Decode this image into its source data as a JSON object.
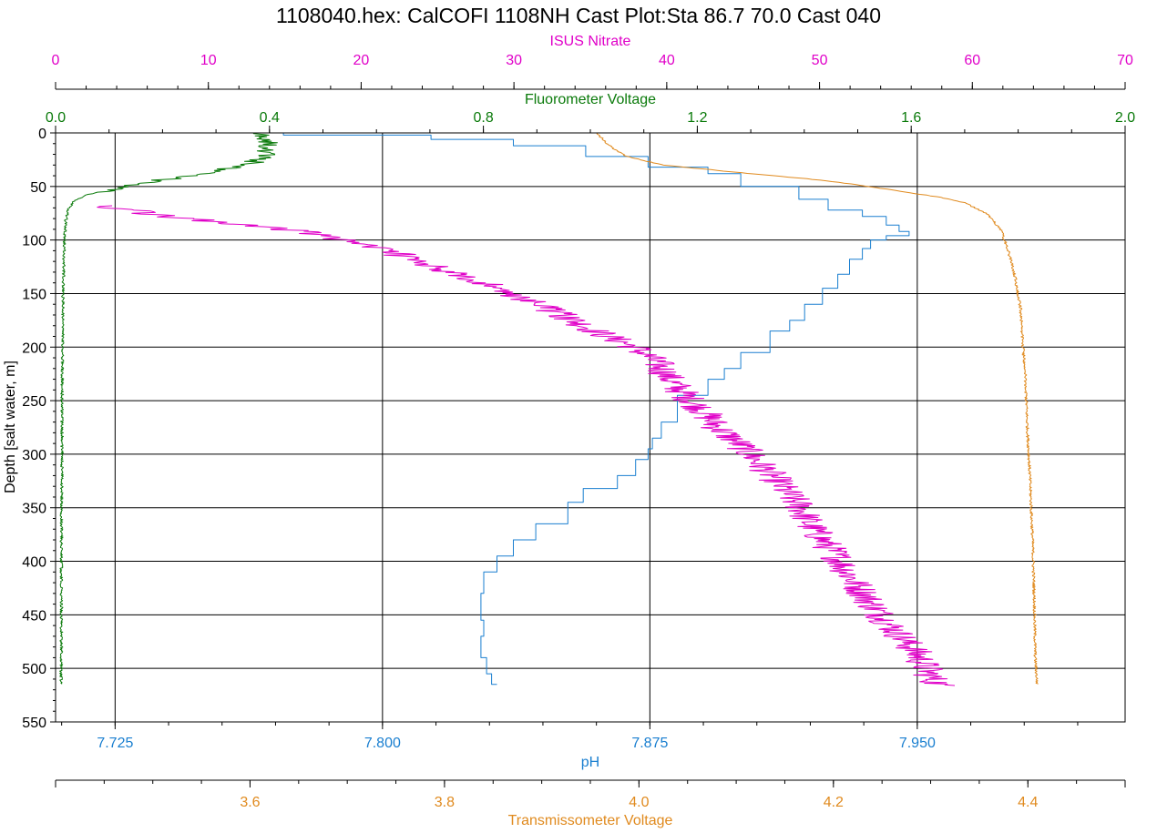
{
  "chart_data": {
    "type": "line",
    "title": "1108040.hex: CalCOFI 1108NH Cast Plot:Sta 86.7 70.0  Cast 040",
    "grid": true,
    "y_axis": {
      "label": "Depth [salt water, m]",
      "range": [
        0,
        550
      ],
      "inverted": true,
      "ticks": [
        0,
        50,
        100,
        150,
        200,
        250,
        300,
        350,
        400,
        450,
        500,
        550
      ],
      "tick_labels": [
        "0",
        "50",
        "100",
        "150",
        "200",
        "250",
        "300",
        "350",
        "400",
        "450",
        "500",
        "550"
      ]
    },
    "x_axes": [
      {
        "key": "nitrate",
        "position": "top-outer",
        "label": "ISUS Nitrate",
        "color": "#e000c8",
        "range": [
          0,
          70
        ],
        "ticks": [
          0,
          10,
          20,
          30,
          40,
          50,
          60,
          70
        ],
        "tick_labels": [
          "0",
          "10",
          "20",
          "30",
          "40",
          "50",
          "60",
          "70"
        ]
      },
      {
        "key": "fluor",
        "position": "top-inner",
        "label": "Fluorometer Voltage",
        "color": "#0a7a0a",
        "range": [
          0,
          2
        ],
        "ticks": [
          0,
          0.4,
          0.8,
          1.2,
          1.6,
          2.0
        ],
        "tick_labels": [
          "0.0",
          "0.4",
          "0.8",
          "1.2",
          "1.6",
          "2.0"
        ]
      },
      {
        "key": "ph",
        "position": "bottom-inner",
        "label": "pH",
        "color": "#1a7fd0",
        "range": [
          7.7083,
          8.0083
        ],
        "ticks": [
          7.725,
          7.8,
          7.875,
          7.95
        ],
        "tick_labels": [
          "7.725",
          "7.800",
          "7.875",
          "7.950"
        ]
      },
      {
        "key": "trans",
        "position": "bottom-outer",
        "label": "Transmissometer Voltage",
        "color": "#e08a1e",
        "range": [
          3.4,
          4.5
        ],
        "ticks": [
          3.6,
          3.8,
          4.0,
          4.2,
          4.4
        ],
        "tick_labels": [
          "3.6",
          "3.8",
          "4.0",
          "4.2",
          "4.4"
        ]
      }
    ],
    "series": [
      {
        "name": "pH",
        "axis": "ph",
        "color": "#1a7fd0",
        "points": [
          [
            7.7257,
            0
          ],
          [
            7.7722,
            0
          ],
          [
            7.8136,
            2
          ],
          [
            7.8367,
            6
          ],
          [
            7.857,
            12
          ],
          [
            7.8745,
            22
          ],
          [
            7.8913,
            32
          ],
          [
            7.9005,
            38
          ],
          [
            7.9168,
            50
          ],
          [
            7.925,
            62
          ],
          [
            7.9346,
            72
          ],
          [
            7.9413,
            78
          ],
          [
            7.9449,
            86
          ],
          [
            7.9477,
            92
          ],
          [
            7.9413,
            96
          ],
          [
            7.9369,
            100
          ],
          [
            7.9346,
            108
          ],
          [
            7.931,
            118
          ],
          [
            7.9277,
            132
          ],
          [
            7.9234,
            145
          ],
          [
            7.9184,
            160
          ],
          [
            7.9142,
            175
          ],
          [
            7.9087,
            185
          ],
          [
            7.9005,
            205
          ],
          [
            7.8959,
            220
          ],
          [
            7.8913,
            230
          ],
          [
            7.8827,
            245
          ],
          [
            7.8782,
            270
          ],
          [
            7.8757,
            285
          ],
          [
            7.8745,
            295
          ],
          [
            7.871,
            305
          ],
          [
            7.8659,
            320
          ],
          [
            7.8563,
            332
          ],
          [
            7.852,
            345
          ],
          [
            7.843,
            365
          ],
          [
            7.8367,
            380
          ],
          [
            7.8321,
            395
          ],
          [
            7.8284,
            410
          ],
          [
            7.8276,
            430
          ],
          [
            7.8284,
            455
          ],
          [
            7.8276,
            470
          ],
          [
            7.8292,
            490
          ],
          [
            7.8306,
            505
          ],
          [
            7.8321,
            515
          ]
        ]
      },
      {
        "name": "Transmissometer Voltage",
        "axis": "trans",
        "color": "#e08a1e",
        "points": [
          [
            3.9572,
            0
          ],
          [
            3.9646,
            8
          ],
          [
            3.976,
            16
          ],
          [
            3.9873,
            22
          ],
          [
            4.0249,
            30
          ],
          [
            4.1138,
            38
          ],
          [
            4.1757,
            43
          ],
          [
            4.2207,
            48
          ],
          [
            4.2582,
            53
          ],
          [
            4.3086,
            60
          ],
          [
            4.3345,
            65
          ],
          [
            4.3589,
            76
          ],
          [
            4.373,
            92
          ],
          [
            4.3804,
            112
          ],
          [
            4.387,
            135
          ],
          [
            4.3926,
            165
          ],
          [
            4.3945,
            195
          ],
          [
            4.3973,
            225
          ],
          [
            4.3992,
            270
          ],
          [
            4.402,
            320
          ],
          [
            4.4048,
            380
          ],
          [
            4.4067,
            440
          ],
          [
            4.4076,
            490
          ],
          [
            4.4095,
            515
          ]
        ]
      },
      {
        "name": "Fluorometer Voltage",
        "axis": "fluor",
        "color": "#0a7a0a",
        "points": [
          [
            0.38,
            0
          ],
          [
            0.392,
            5
          ],
          [
            0.398,
            12
          ],
          [
            0.395,
            20
          ],
          [
            0.362,
            30
          ],
          [
            0.248,
            40
          ],
          [
            0.126,
            50
          ],
          [
            0.056,
            58
          ],
          [
            0.034,
            64
          ],
          [
            0.024,
            72
          ],
          [
            0.019,
            82
          ],
          [
            0.017,
            95
          ],
          [
            0.016,
            110
          ],
          [
            0.014,
            150
          ],
          [
            0.013,
            200
          ],
          [
            0.012,
            260
          ],
          [
            0.012,
            320
          ],
          [
            0.011,
            380
          ],
          [
            0.011,
            440
          ],
          [
            0.011,
            480
          ],
          [
            0.01,
            515
          ]
        ]
      },
      {
        "name": "ISUS Nitrate",
        "axis": "nitrate",
        "color": "#e000c8",
        "points": [
          [
            3.0,
            68
          ],
          [
            7.4,
            78
          ],
          [
            11.6,
            85
          ],
          [
            16.1,
            92
          ],
          [
            19.0,
            100
          ],
          [
            22.1,
            112
          ],
          [
            25.0,
            125
          ],
          [
            27.9,
            140
          ],
          [
            30.6,
            155
          ],
          [
            33.2,
            170
          ],
          [
            35.3,
            185
          ],
          [
            37.9,
            200
          ],
          [
            39.4,
            215
          ],
          [
            40.2,
            230
          ],
          [
            41.2,
            245
          ],
          [
            42.4,
            260
          ],
          [
            43.3,
            275
          ],
          [
            44.7,
            290
          ],
          [
            45.8,
            305
          ],
          [
            46.9,
            320
          ],
          [
            47.8,
            335
          ],
          [
            48.8,
            350
          ],
          [
            49.3,
            365
          ],
          [
            50.2,
            380
          ],
          [
            51.1,
            395
          ],
          [
            51.8,
            410
          ],
          [
            52.6,
            425
          ],
          [
            53.4,
            440
          ],
          [
            54.3,
            455
          ],
          [
            55.3,
            470
          ],
          [
            56.3,
            485
          ],
          [
            57.0,
            500
          ],
          [
            57.4,
            510
          ],
          [
            57.9,
            516
          ]
        ]
      }
    ]
  }
}
